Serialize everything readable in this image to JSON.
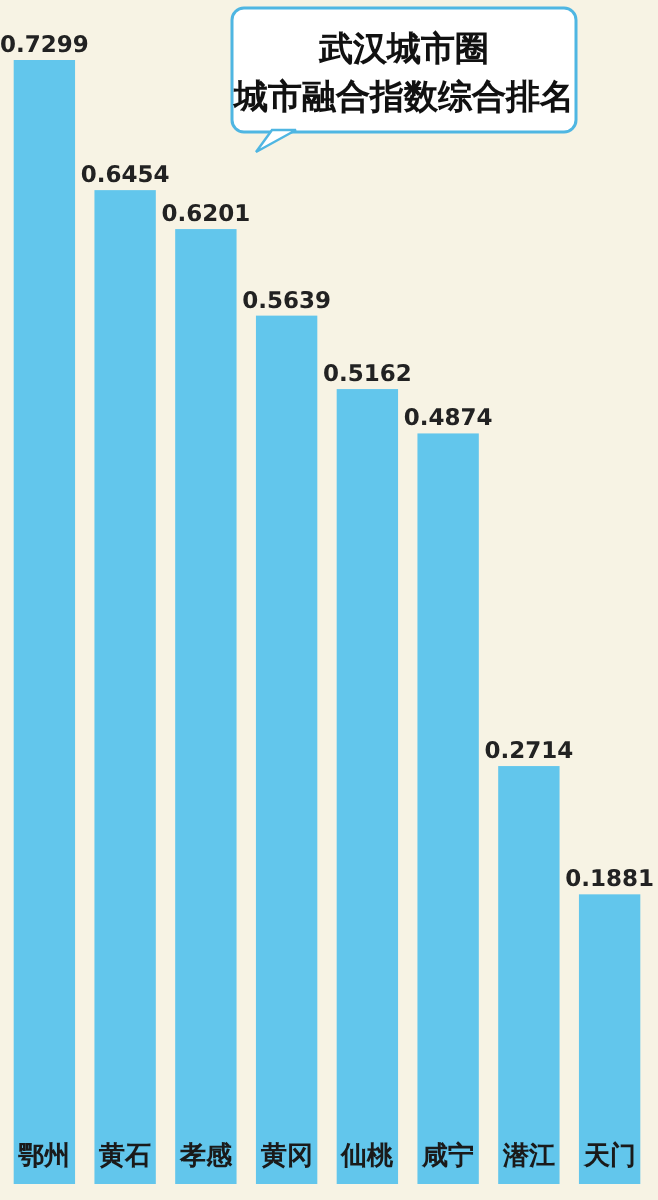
{
  "chart_data": {
    "type": "bar",
    "title": "武汉城市圈",
    "subtitle": "城市融合指数综合排名",
    "categories": [
      "鄂州",
      "黄石",
      "孝感",
      "黄冈",
      "仙桃",
      "咸宁",
      "潜江",
      "天门"
    ],
    "values": [
      0.7299,
      0.6454,
      0.6201,
      0.5639,
      0.5162,
      0.4874,
      0.2714,
      0.1881
    ],
    "color": "#62c6ec",
    "data_labels": true
  }
}
